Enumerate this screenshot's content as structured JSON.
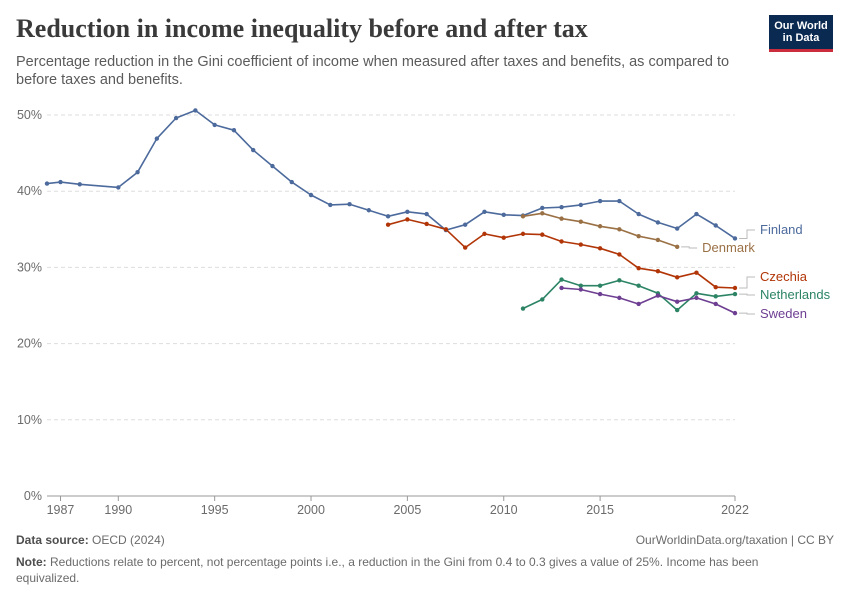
{
  "header": {
    "title": "Reduction in income inequality before and after tax",
    "subtitle": "Percentage reduction in the Gini coefficient of income when measured after taxes and benefits, as compared to before taxes and benefits."
  },
  "logo": {
    "line1": "Our World",
    "line2": "in Data"
  },
  "footer": {
    "source_label": "Data source:",
    "source": "OECD (2024)",
    "url": "OurWorldinData.org/taxation | CC BY",
    "note_label": "Note:",
    "note": "Reductions relate to percent, not percentage points i.e., a reduction in the Gini from 0.4 to 0.3 gives a value of 25%. Income has been equivalized."
  },
  "colors": {
    "text": "#4e4e4e",
    "grid": "#dddddd",
    "brand": "#0b2a52",
    "brand_accent": "#cc2d3c"
  },
  "chart_data": {
    "type": "line",
    "title": "Reduction in income inequality before and after tax",
    "xlabel": "",
    "ylabel": "",
    "xlim": [
      1986.3,
      2022
    ],
    "ylim": [
      0,
      50
    ],
    "x_ticks": [
      1987,
      1990,
      1995,
      2000,
      2005,
      2010,
      2015,
      2022
    ],
    "y_ticks": [
      0,
      10,
      20,
      30,
      40,
      50
    ],
    "y_tick_labels": [
      "0%",
      "10%",
      "20%",
      "30%",
      "40%",
      "50%"
    ],
    "grid": "horizontal dashed",
    "legend": "right, labels at line ends",
    "series": [
      {
        "name": "Finland",
        "color": "#4c6a9c",
        "points": [
          [
            1986.3,
            41.0
          ],
          [
            1987,
            41.2
          ],
          [
            1988,
            40.9
          ],
          [
            1990,
            40.5
          ],
          [
            1991,
            42.5
          ],
          [
            1992,
            46.9
          ],
          [
            1993,
            49.6
          ],
          [
            1994,
            50.6
          ],
          [
            1995,
            48.7
          ],
          [
            1996,
            48.0
          ],
          [
            1997,
            45.4
          ],
          [
            1998,
            43.3
          ],
          [
            1999,
            41.2
          ],
          [
            2000,
            39.5
          ],
          [
            2001,
            38.2
          ],
          [
            2002,
            38.3
          ],
          [
            2003,
            37.5
          ],
          [
            2004,
            36.7
          ],
          [
            2005,
            37.3
          ],
          [
            2006,
            37.0
          ],
          [
            2007,
            34.9
          ],
          [
            2008,
            35.6
          ],
          [
            2009,
            37.3
          ],
          [
            2010,
            36.9
          ],
          [
            2011,
            36.8
          ],
          [
            2012,
            37.8
          ],
          [
            2013,
            37.9
          ],
          [
            2014,
            38.2
          ],
          [
            2015,
            38.7
          ],
          [
            2016,
            38.7
          ],
          [
            2017,
            37.0
          ],
          [
            2018,
            35.9
          ],
          [
            2019,
            35.1
          ],
          [
            2020,
            37.0
          ],
          [
            2021,
            35.5
          ],
          [
            2022,
            33.8
          ]
        ]
      },
      {
        "name": "Denmark",
        "color": "#9a7045",
        "points": [
          [
            2011,
            36.7
          ],
          [
            2012,
            37.1
          ],
          [
            2013,
            36.4
          ],
          [
            2014,
            36.0
          ],
          [
            2015,
            35.4
          ],
          [
            2016,
            35.0
          ],
          [
            2017,
            34.1
          ],
          [
            2018,
            33.6
          ],
          [
            2019,
            32.7
          ]
        ]
      },
      {
        "name": "Czechia",
        "color": "#b13507",
        "points": [
          [
            2004,
            35.6
          ],
          [
            2005,
            36.3
          ],
          [
            2006,
            35.7
          ],
          [
            2007,
            35.0
          ],
          [
            2008,
            32.6
          ],
          [
            2009,
            34.4
          ],
          [
            2010,
            33.9
          ],
          [
            2011,
            34.4
          ],
          [
            2012,
            34.3
          ],
          [
            2013,
            33.4
          ],
          [
            2014,
            33.0
          ],
          [
            2015,
            32.5
          ],
          [
            2016,
            31.7
          ],
          [
            2017,
            29.9
          ],
          [
            2018,
            29.5
          ],
          [
            2019,
            28.7
          ],
          [
            2020,
            29.3
          ],
          [
            2021,
            27.4
          ],
          [
            2022,
            27.3
          ]
        ]
      },
      {
        "name": "Netherlands",
        "color": "#2c8465",
        "points": [
          [
            2011,
            24.6
          ],
          [
            2012,
            25.8
          ],
          [
            2013,
            28.4
          ],
          [
            2014,
            27.6
          ],
          [
            2015,
            27.6
          ],
          [
            2016,
            28.3
          ],
          [
            2017,
            27.6
          ],
          [
            2018,
            26.6
          ],
          [
            2019,
            24.4
          ],
          [
            2020,
            26.6
          ],
          [
            2021,
            26.2
          ],
          [
            2022,
            26.5
          ]
        ]
      },
      {
        "name": "Sweden",
        "color": "#6d3e91",
        "points": [
          [
            2013,
            27.3
          ],
          [
            2014,
            27.1
          ],
          [
            2015,
            26.5
          ],
          [
            2016,
            26.0
          ],
          [
            2017,
            25.2
          ],
          [
            2018,
            26.3
          ],
          [
            2019,
            25.5
          ],
          [
            2020,
            26.0
          ],
          [
            2021,
            25.2
          ],
          [
            2022,
            24.0
          ]
        ]
      }
    ]
  }
}
